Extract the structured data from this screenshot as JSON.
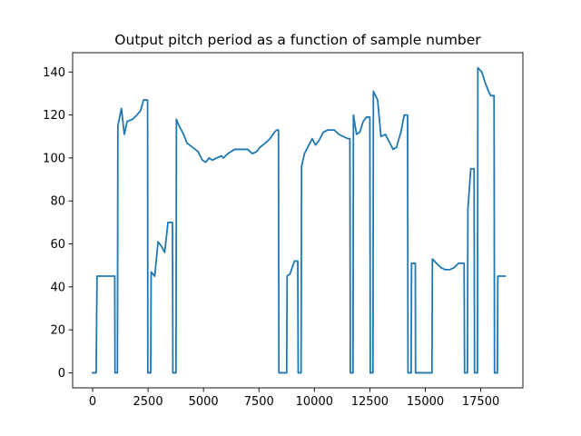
{
  "chart_data": {
    "type": "line",
    "title": "Output pitch period as a function of sample number",
    "xlabel": "",
    "ylabel": "",
    "xlim": [
      -900,
      19400
    ],
    "ylim": [
      -7,
      149
    ],
    "xticks": [
      0,
      2500,
      5000,
      7500,
      10000,
      12500,
      15000,
      17500
    ],
    "xtick_labels": [
      "0",
      "2500",
      "5000",
      "7500",
      "10000",
      "12500",
      "15000",
      "17500"
    ],
    "yticks": [
      0,
      20,
      40,
      60,
      80,
      100,
      120,
      140
    ],
    "ytick_labels": [
      "0",
      "20",
      "40",
      "60",
      "80",
      "100",
      "120",
      "140"
    ],
    "grid": false,
    "series": [
      {
        "color": "#1f77b4",
        "points": [
          [
            0,
            0
          ],
          [
            160,
            0
          ],
          [
            200,
            45
          ],
          [
            300,
            45
          ],
          [
            1000,
            45
          ],
          [
            1010,
            0
          ],
          [
            1120,
            0
          ],
          [
            1140,
            115
          ],
          [
            1300,
            123
          ],
          [
            1430,
            111
          ],
          [
            1560,
            117
          ],
          [
            1800,
            118
          ],
          [
            2000,
            120
          ],
          [
            2160,
            122
          ],
          [
            2300,
            127
          ],
          [
            2480,
            127
          ],
          [
            2490,
            0
          ],
          [
            2620,
            0
          ],
          [
            2640,
            47
          ],
          [
            2800,
            45
          ],
          [
            2950,
            61
          ],
          [
            3100,
            59
          ],
          [
            3250,
            56
          ],
          [
            3400,
            70
          ],
          [
            3600,
            70
          ],
          [
            3620,
            0
          ],
          [
            3760,
            0
          ],
          [
            3780,
            118
          ],
          [
            3900,
            115
          ],
          [
            4100,
            111
          ],
          [
            4250,
            107
          ],
          [
            4500,
            105
          ],
          [
            4750,
            103
          ],
          [
            4950,
            99
          ],
          [
            5100,
            98
          ],
          [
            5250,
            100
          ],
          [
            5400,
            99
          ],
          [
            5600,
            100
          ],
          [
            5800,
            101
          ],
          [
            5900,
            100
          ],
          [
            6100,
            102
          ],
          [
            6400,
            104
          ],
          [
            6700,
            104
          ],
          [
            7000,
            104
          ],
          [
            7200,
            102
          ],
          [
            7400,
            103
          ],
          [
            7550,
            105
          ],
          [
            7800,
            107
          ],
          [
            8000,
            109
          ],
          [
            8200,
            112
          ],
          [
            8300,
            113
          ],
          [
            8380,
            113
          ],
          [
            8400,
            0
          ],
          [
            8520,
            0
          ],
          [
            8750,
            0
          ],
          [
            8770,
            45
          ],
          [
            8900,
            46
          ],
          [
            9100,
            52
          ],
          [
            9250,
            52
          ],
          [
            9270,
            0
          ],
          [
            9400,
            0
          ],
          [
            9420,
            96
          ],
          [
            9550,
            102
          ],
          [
            9700,
            105
          ],
          [
            9900,
            109
          ],
          [
            10050,
            106
          ],
          [
            10200,
            108
          ],
          [
            10400,
            112
          ],
          [
            10600,
            113
          ],
          [
            10900,
            113
          ],
          [
            11100,
            111
          ],
          [
            11300,
            110
          ],
          [
            11500,
            109
          ],
          [
            11600,
            109
          ],
          [
            11620,
            0
          ],
          [
            11740,
            0
          ],
          [
            11760,
            120
          ],
          [
            11900,
            111
          ],
          [
            12050,
            112
          ],
          [
            12200,
            117
          ],
          [
            12350,
            119
          ],
          [
            12500,
            119
          ],
          [
            12520,
            0
          ],
          [
            12640,
            0
          ],
          [
            12660,
            131
          ],
          [
            12850,
            127
          ],
          [
            13000,
            110
          ],
          [
            13200,
            111
          ],
          [
            13450,
            106
          ],
          [
            13550,
            104
          ],
          [
            13700,
            105
          ],
          [
            13900,
            112
          ],
          [
            14050,
            120
          ],
          [
            14200,
            120
          ],
          [
            14220,
            0
          ],
          [
            14360,
            0
          ],
          [
            14380,
            51
          ],
          [
            14550,
            51
          ],
          [
            14560,
            0
          ],
          [
            14700,
            0
          ],
          [
            15300,
            0
          ],
          [
            15320,
            53
          ],
          [
            15500,
            51
          ],
          [
            15700,
            49
          ],
          [
            15900,
            48
          ],
          [
            16100,
            48
          ],
          [
            16300,
            49
          ],
          [
            16500,
            51
          ],
          [
            16750,
            51
          ],
          [
            16770,
            0
          ],
          [
            16900,
            0
          ],
          [
            16920,
            76
          ],
          [
            17050,
            95
          ],
          [
            17200,
            95
          ],
          [
            17220,
            0
          ],
          [
            17350,
            0
          ],
          [
            17370,
            142
          ],
          [
            17550,
            140
          ],
          [
            17700,
            135
          ],
          [
            17850,
            131
          ],
          [
            17950,
            129
          ],
          [
            18100,
            129
          ],
          [
            18120,
            0
          ],
          [
            18250,
            0
          ],
          [
            18270,
            45
          ],
          [
            18600,
            45
          ]
        ]
      }
    ]
  }
}
